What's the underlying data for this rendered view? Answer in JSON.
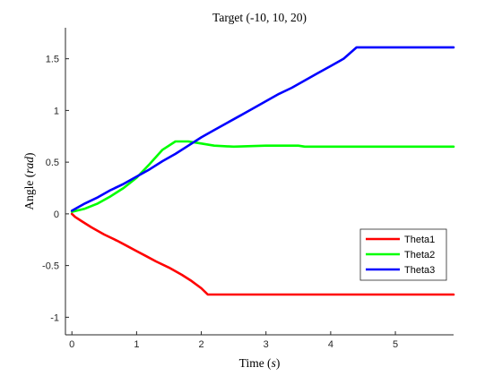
{
  "chart_data": {
    "type": "line",
    "title": "Target (-10, 10, 20)",
    "xlabel_text": "Time (",
    "xlabel_var": "s",
    "xlabel_close": ")",
    "ylabel_text": "Angle (",
    "ylabel_var": "rad",
    "ylabel_close": ")",
    "xlim": [
      -0.1,
      5.9
    ],
    "ylim": [
      -1.17,
      1.8
    ],
    "x_ticks": [
      0,
      1,
      2,
      3,
      4,
      5
    ],
    "x_tick_labels": [
      "0",
      "1",
      "2",
      "3",
      "4",
      "5"
    ],
    "y_ticks": [
      -1,
      -0.5,
      0,
      0.5,
      1,
      1.5
    ],
    "y_tick_labels": [
      "-1",
      "-0.5",
      "0",
      "0.5",
      "1",
      "1.5"
    ],
    "grid": false,
    "legend_position": "bottom-right",
    "series": [
      {
        "name": "Theta1",
        "color": "#ff0000",
        "x": [
          0,
          0.05,
          0.15,
          0.3,
          0.5,
          0.7,
          0.85,
          1.0,
          1.15,
          1.3,
          1.5,
          1.7,
          1.85,
          2.0,
          2.1,
          2.3,
          3.0,
          4.0,
          5.0,
          5.9
        ],
        "y": [
          0,
          -0.03,
          -0.07,
          -0.13,
          -0.2,
          -0.26,
          -0.31,
          -0.36,
          -0.41,
          -0.46,
          -0.52,
          -0.59,
          -0.65,
          -0.72,
          -0.78,
          -0.78,
          -0.78,
          -0.78,
          -0.78,
          -0.78
        ]
      },
      {
        "name": "Theta2",
        "color": "#00ff00",
        "x": [
          0,
          0.2,
          0.4,
          0.6,
          0.8,
          1.0,
          1.2,
          1.4,
          1.6,
          1.8,
          2.0,
          2.2,
          2.5,
          3.0,
          3.5,
          3.6,
          4.0,
          5.0,
          5.9
        ],
        "y": [
          0.02,
          0.05,
          0.1,
          0.17,
          0.25,
          0.35,
          0.48,
          0.62,
          0.7,
          0.7,
          0.68,
          0.66,
          0.65,
          0.66,
          0.66,
          0.65,
          0.65,
          0.65,
          0.65
        ]
      },
      {
        "name": "Theta3",
        "color": "#0000ff",
        "x": [
          0,
          0.2,
          0.4,
          0.6,
          0.8,
          1.0,
          1.2,
          1.4,
          1.6,
          1.8,
          2.0,
          2.2,
          2.4,
          2.6,
          2.8,
          3.0,
          3.2,
          3.4,
          3.6,
          3.8,
          4.0,
          4.2,
          4.4,
          4.6,
          5.0,
          5.5,
          5.9
        ],
        "y": [
          0.03,
          0.1,
          0.16,
          0.23,
          0.29,
          0.36,
          0.43,
          0.51,
          0.58,
          0.66,
          0.74,
          0.81,
          0.88,
          0.95,
          1.02,
          1.09,
          1.16,
          1.22,
          1.29,
          1.36,
          1.43,
          1.5,
          1.61,
          1.61,
          1.61,
          1.61,
          1.61
        ]
      }
    ]
  }
}
